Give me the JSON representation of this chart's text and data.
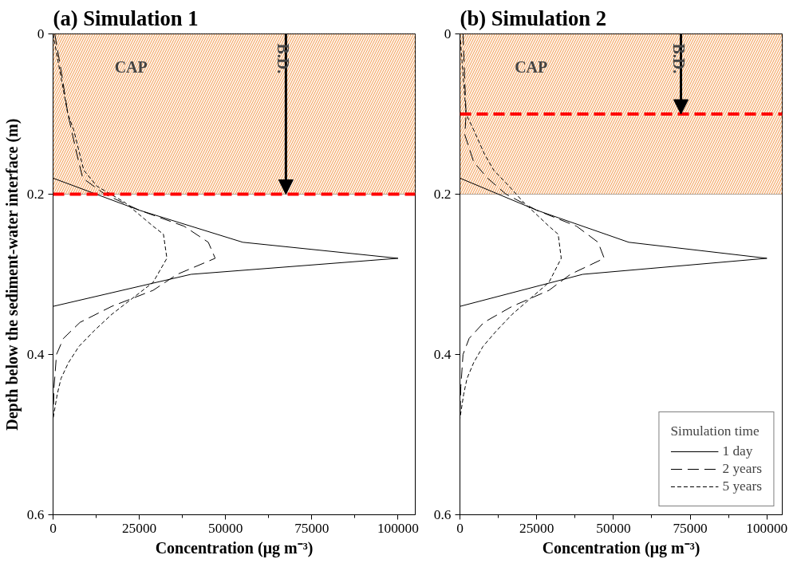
{
  "chart_data": [
    {
      "type": "line",
      "title": "(a)     Simulation 1",
      "xlabel": "Concentration (μg m⁻³)",
      "ylabel": "Depth below the sediment-water interface (m)",
      "xlim": [
        0,
        105000
      ],
      "xticks": [
        0,
        25000,
        50000,
        75000,
        100000
      ],
      "ylim": [
        0.6,
        0
      ],
      "yticks": [
        0,
        0.2,
        0.4,
        0.6
      ],
      "orientation": "horizontal",
      "grid": false,
      "legend": false,
      "series": [
        {
          "color": "#000000",
          "line_style": "solid",
          "x": [
            0,
            0.18,
            0.22,
            0.26,
            0.28,
            0.3,
            0.34,
            0.6
          ],
          "values": [
            0,
            0,
            25000,
            55000,
            100000,
            40000,
            0,
            0
          ]
        },
        {
          "color": "#000000",
          "line_style": "dashed",
          "x": [
            0,
            0.05,
            0.1,
            0.15,
            0.18,
            0.2,
            0.22,
            0.24,
            0.26,
            0.28,
            0.3,
            0.32,
            0.34,
            0.36,
            0.38,
            0.4,
            0.44,
            0.48,
            0.6
          ],
          "values": [
            500,
            2500,
            4300,
            6900,
            8600,
            15000,
            25000,
            38000,
            45000,
            47000,
            36000,
            29000,
            17000,
            7800,
            3000,
            1000,
            300,
            0,
            0
          ]
        },
        {
          "color": "#000000",
          "line_style": "dotted",
          "x": [
            0,
            0.04,
            0.1,
            0.12,
            0.17,
            0.19,
            0.21,
            0.24,
            0.25,
            0.28,
            0.31,
            0.33,
            0.35,
            0.37,
            0.39,
            0.41,
            0.43,
            0.45,
            0.48,
            0.6
          ],
          "values": [
            0,
            1700,
            4300,
            6000,
            8900,
            12700,
            20700,
            29000,
            32000,
            33000,
            29000,
            23000,
            17000,
            12000,
            7500,
            4500,
            2300,
            1200,
            0,
            0
          ]
        }
      ],
      "bands": [
        {
          "axis": "y",
          "from": 0,
          "to": 0.2,
          "label": "CAP",
          "color": "#f4a460"
        }
      ],
      "ref_lines": [
        {
          "axis": "y",
          "value": 0.2,
          "color": "#ff0000",
          "line_style": "dashed"
        }
      ],
      "annotations": [
        {
          "text": "B.D.",
          "x": 67500,
          "y": 0.2
        }
      ]
    },
    {
      "type": "line",
      "title": "(b)     Simulation 2",
      "xlabel": "Concentration (μg m⁻³)",
      "xlim": [
        0,
        105000
      ],
      "xticks": [
        0,
        25000,
        50000,
        75000,
        100000
      ],
      "ylim": [
        0.6,
        0
      ],
      "yticks": [
        0,
        0.2,
        0.4,
        0.6
      ],
      "orientation": "horizontal",
      "grid": false,
      "legend": "bottom right",
      "legend_title": "Simulation time",
      "series": [
        {
          "name": "1 day",
          "color": "#000000",
          "line_style": "solid",
          "x": [
            0,
            0.18,
            0.22,
            0.26,
            0.28,
            0.3,
            0.34,
            0.6
          ],
          "values": [
            0,
            0,
            25000,
            55000,
            100000,
            40000,
            0,
            0
          ]
        },
        {
          "name": "2 years",
          "color": "#000000",
          "line_style": "dashed",
          "x": [
            0,
            0.05,
            0.1,
            0.126,
            0.16,
            0.18,
            0.2,
            0.22,
            0.24,
            0.26,
            0.28,
            0.3,
            0.32,
            0.34,
            0.36,
            0.38,
            0.4,
            0.44,
            0.48,
            0.6
          ],
          "values": [
            1000,
            1500,
            2000,
            1600,
            4500,
            9000,
            15000,
            25000,
            38000,
            45000,
            47000,
            36000,
            29000,
            17000,
            7800,
            3000,
            1000,
            300,
            0,
            0
          ]
        },
        {
          "name": "5 years",
          "color": "#000000",
          "line_style": "dotted",
          "x": [
            0,
            0.05,
            0.1,
            0.12,
            0.15,
            0.17,
            0.19,
            0.21,
            0.24,
            0.25,
            0.28,
            0.31,
            0.33,
            0.35,
            0.37,
            0.39,
            0.41,
            0.43,
            0.45,
            0.48,
            0.6
          ],
          "values": [
            0,
            1000,
            2000,
            4500,
            8000,
            11000,
            16000,
            20700,
            29000,
            32000,
            33000,
            29000,
            23000,
            17000,
            12000,
            7500,
            4500,
            2300,
            1200,
            0,
            0
          ]
        }
      ],
      "bands": [
        {
          "axis": "y",
          "from": 0,
          "to": 0.2,
          "label": "CAP",
          "color": "#f4a460"
        }
      ],
      "ref_lines": [
        {
          "axis": "y",
          "value": 0.1,
          "color": "#ff0000",
          "line_style": "dashed"
        }
      ],
      "annotations": [
        {
          "text": "B.D.",
          "x": 72000,
          "y": 0.1
        }
      ]
    }
  ]
}
